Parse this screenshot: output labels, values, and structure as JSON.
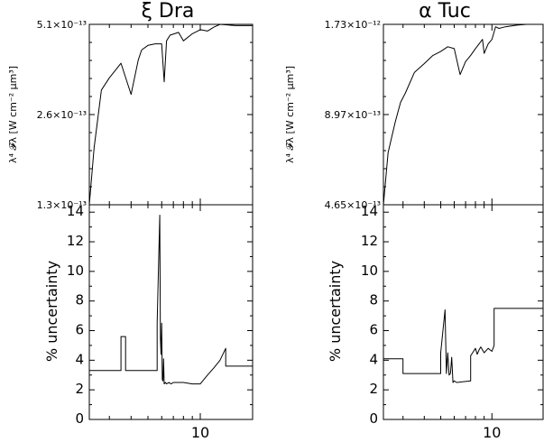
{
  "chart_data": [
    {
      "type": "line",
      "title": "ξ Dra",
      "ylabel": "λ⁴ 𝓕λ [W cm⁻² μm³]",
      "yscale": "log",
      "ylim": [
        1.3e-13,
        5.1e-13
      ],
      "xlim": [
        2.3,
        20
      ],
      "xscale": "log",
      "ytick_labels": [
        "1.3×10⁻¹³",
        "2.6×10⁻¹³",
        "5.1×10⁻¹³"
      ],
      "series": [
        {
          "x": [
            2.3,
            2.45,
            2.7,
            3.0,
            3.5,
            4.0,
            4.4,
            4.6,
            5.0,
            5.5,
            6.0,
            6.2,
            6.4,
            6.7,
            7.5,
            8.0,
            9.0,
            10.0,
            11.0,
            12.0,
            13.0,
            16.0,
            20.0
          ],
          "values": [
            1.3e-13,
            2e-13,
            3.1e-13,
            3.4e-13,
            3.8e-13,
            3e-13,
            3.9e-13,
            4.2e-13,
            4.35e-13,
            4.4e-13,
            4.4e-13,
            3.3e-13,
            4.5e-13,
            4.7e-13,
            4.8e-13,
            4.5e-13,
            4.75e-13,
            4.9e-13,
            4.85e-13,
            5e-13,
            5.1e-13,
            5.05e-13,
            5.05e-13
          ]
        }
      ]
    },
    {
      "type": "line",
      "title": "",
      "ylabel": "% uncertainty",
      "ylim": [
        0,
        14.5
      ],
      "xlim": [
        2.3,
        20
      ],
      "xscale": "log",
      "ytick_labels": [
        "0",
        "2",
        "4",
        "6",
        "8",
        "10",
        "12",
        "14"
      ],
      "xtick_labels": [
        "10"
      ],
      "series": [
        {
          "x": [
            2.3,
            3.5,
            3.5,
            3.72,
            3.72,
            5.65,
            5.65,
            5.85,
            5.9,
            5.95,
            6.0,
            6.05,
            6.1,
            6.15,
            6.2,
            6.3,
            6.4,
            6.6,
            6.8,
            7.0,
            8.0,
            9.0,
            10.0,
            11.0,
            12.0,
            13.0,
            14.0,
            14.0,
            20.0
          ],
          "values": [
            3.3,
            3.3,
            5.6,
            5.6,
            3.3,
            3.3,
            6.5,
            13.8,
            5.5,
            4.4,
            6.5,
            2.7,
            2.6,
            4.1,
            2.4,
            2.5,
            2.4,
            2.5,
            2.4,
            2.5,
            2.5,
            2.4,
            2.4,
            3.0,
            3.5,
            4.0,
            4.8,
            3.6,
            3.6
          ]
        }
      ]
    },
    {
      "type": "line",
      "title": "α Tuc",
      "ylabel": "λ⁴ 𝓕λ [W cm⁻² μm³]",
      "yscale": "log",
      "ylim": [
        4.65e-13,
        1.73e-12
      ],
      "xlim": [
        2.3,
        20
      ],
      "xscale": "log",
      "ytick_labels": [
        "4.65×10⁻¹³",
        "8.97×10⁻¹³",
        "1.73×10⁻¹²"
      ],
      "series": [
        {
          "x": [
            2.3,
            2.45,
            2.7,
            2.9,
            3.1,
            3.5,
            4.0,
            4.5,
            5.0,
            5.5,
            6.0,
            6.5,
            7.0,
            7.5,
            8.0,
            8.4,
            8.8,
            9.0,
            9.5,
            10.0,
            10.5,
            11.0,
            12.0,
            14.0,
            16.0,
            20.0
          ],
          "values": [
            4.65e-13,
            6.8e-13,
            8.5e-13,
            9.8e-13,
            1.05e-12,
            1.22e-12,
            1.3e-12,
            1.38e-12,
            1.42e-12,
            1.47e-12,
            1.45e-12,
            1.2e-12,
            1.32e-12,
            1.38e-12,
            1.45e-12,
            1.5e-12,
            1.55e-12,
            1.4e-12,
            1.5e-12,
            1.55e-12,
            1.7e-12,
            1.68e-12,
            1.7e-12,
            1.72e-12,
            1.73e-12,
            1.73e-12
          ]
        }
      ]
    },
    {
      "type": "line",
      "title": "",
      "ylabel": "% uncertainty",
      "ylim": [
        0,
        14.5
      ],
      "xlim": [
        2.3,
        20
      ],
      "xscale": "log",
      "ytick_labels": [
        "0",
        "2",
        "4",
        "6",
        "8",
        "10",
        "12",
        "14"
      ],
      "xtick_labels": [
        "10"
      ],
      "series": [
        {
          "x": [
            2.3,
            3.0,
            3.0,
            5.0,
            5.0,
            5.3,
            5.4,
            5.5,
            5.6,
            5.7,
            5.8,
            5.9,
            6.0,
            6.2,
            6.2,
            7.5,
            7.5,
            7.8,
            8.0,
            8.2,
            8.4,
            8.6,
            9.0,
            9.5,
            10.0,
            10.3,
            10.3,
            20.0
          ],
          "values": [
            4.1,
            4.1,
            3.1,
            3.1,
            4.5,
            7.4,
            3.1,
            4.5,
            3.0,
            3.1,
            4.2,
            2.5,
            2.6,
            2.5,
            2.5,
            2.6,
            4.3,
            4.6,
            4.8,
            4.4,
            4.7,
            4.9,
            4.5,
            4.8,
            4.6,
            5.0,
            7.5,
            7.5
          ]
        }
      ]
    }
  ]
}
